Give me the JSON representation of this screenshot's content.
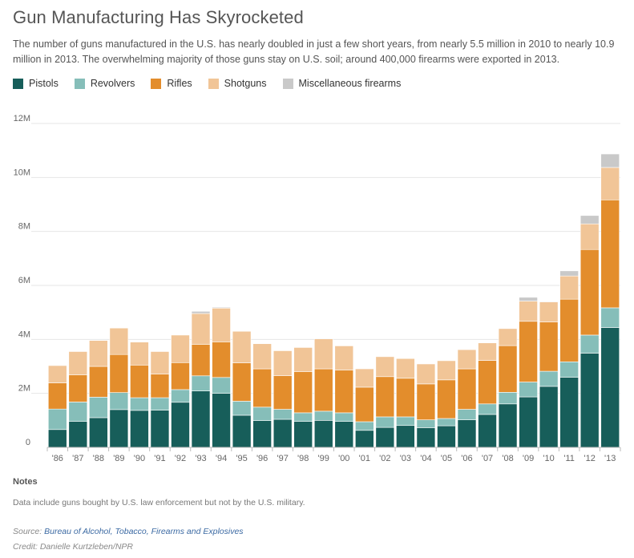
{
  "header": {
    "title": "Gun Manufacturing Has Skyrocketed",
    "subtitle": "The number of guns manufactured in the U.S. has nearly doubled in just a few short years, from nearly 5.5 million in 2010 to nearly 10.9 million in 2013. The overwhelming majority of those guns stay on U.S. soil; around 400,000 firearms were exported in 2013."
  },
  "legend": [
    {
      "label": "Pistols",
      "color": "#175e5a"
    },
    {
      "label": "Revolvers",
      "color": "#86beb9"
    },
    {
      "label": "Rifles",
      "color": "#e38d2c"
    },
    {
      "label": "Shotguns",
      "color": "#f1c597"
    },
    {
      "label": "Miscellaneous firearms",
      "color": "#c9c9c9"
    }
  ],
  "chart_data": {
    "type": "bar",
    "stacked": true,
    "categories": [
      "'86",
      "'87",
      "'88",
      "'89",
      "'90",
      "'91",
      "'92",
      "'93",
      "'94",
      "'95",
      "'96",
      "'97",
      "'98",
      "'99",
      "'00",
      "'01",
      "'02",
      "'03",
      "'04",
      "'05",
      "'06",
      "'07",
      "'08",
      "'09",
      "'10",
      "'11",
      "'12",
      "'13"
    ],
    "ylim": [
      0,
      12
    ],
    "yticks": [
      {
        "value": 0,
        "label": "0"
      },
      {
        "value": 2,
        "label": "2M"
      },
      {
        "value": 4,
        "label": "4M"
      },
      {
        "value": 6,
        "label": "6M"
      },
      {
        "value": 8,
        "label": "8M"
      },
      {
        "value": 10,
        "label": "10M"
      },
      {
        "value": 12,
        "label": "12M"
      }
    ],
    "grid": true,
    "legend_position": "top-left",
    "series": [
      {
        "name": "Pistols",
        "color": "#175e5a",
        "values": [
          0.66,
          0.96,
          1.1,
          1.4,
          1.37,
          1.38,
          1.67,
          2.09,
          2.0,
          1.19,
          0.99,
          1.04,
          0.96,
          1.0,
          0.96,
          0.63,
          0.74,
          0.81,
          0.73,
          0.8,
          1.02,
          1.22,
          1.61,
          1.87,
          2.26,
          2.6,
          3.49,
          4.44
        ]
      },
      {
        "name": "Revolvers",
        "color": "#86beb9",
        "values": [
          0.76,
          0.72,
          0.76,
          0.63,
          0.47,
          0.46,
          0.47,
          0.56,
          0.59,
          0.52,
          0.5,
          0.37,
          0.32,
          0.34,
          0.32,
          0.32,
          0.39,
          0.32,
          0.29,
          0.27,
          0.39,
          0.39,
          0.43,
          0.55,
          0.56,
          0.57,
          0.67,
          0.73
        ]
      },
      {
        "name": "Rifles",
        "color": "#e38d2c",
        "values": [
          0.97,
          1.01,
          1.14,
          1.41,
          1.21,
          0.88,
          1.0,
          1.17,
          1.32,
          1.42,
          1.42,
          1.25,
          1.53,
          1.57,
          1.58,
          1.28,
          1.49,
          1.43,
          1.33,
          1.43,
          1.5,
          1.61,
          1.73,
          2.25,
          1.83,
          2.32,
          3.17,
          4.0
        ]
      },
      {
        "name": "Shotguns",
        "color": "#f1c597",
        "values": [
          0.64,
          0.86,
          0.96,
          0.98,
          0.85,
          0.83,
          1.02,
          1.14,
          1.25,
          1.17,
          0.93,
          0.92,
          0.89,
          1.11,
          0.9,
          0.68,
          0.74,
          0.73,
          0.74,
          0.71,
          0.71,
          0.65,
          0.63,
          0.75,
          0.74,
          0.86,
          0.95,
          1.2
        ]
      },
      {
        "name": "Miscellaneous firearms",
        "color": "#c9c9c9",
        "values": [
          0,
          0,
          0,
          0,
          0,
          0,
          0,
          0.08,
          0.03,
          0,
          0,
          0,
          0,
          0.02,
          0,
          0,
          0,
          0,
          0,
          0,
          0,
          0,
          0,
          0.14,
          0.02,
          0.19,
          0.31,
          0.5
        ]
      }
    ]
  },
  "notes": {
    "title": "Notes",
    "text": "Data include guns bought by U.S. law enforcement but not by the U.S. military."
  },
  "source": {
    "prefix": "Source: ",
    "link_text": "Bureau of Alcohol, Tobacco, Firearms and Explosives",
    "credit": "Credit: Danielle Kurtzleben/NPR"
  }
}
